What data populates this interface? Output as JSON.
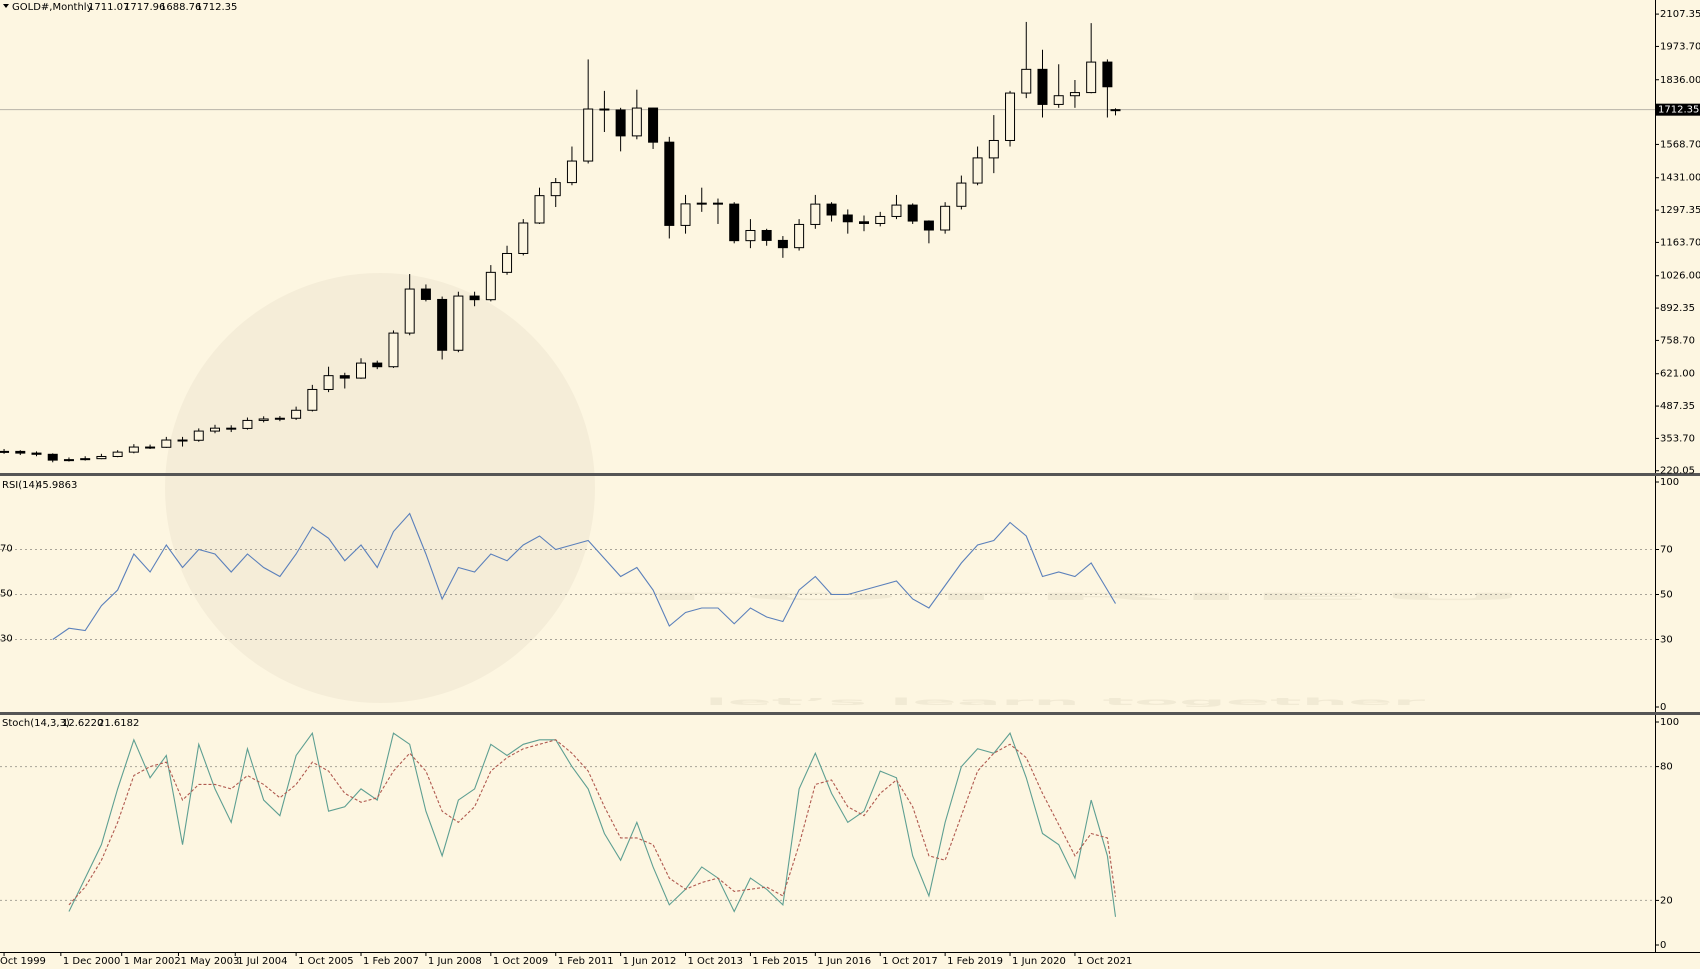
{
  "watermark": {
    "brand": "TOTRIEU",
    "tagline": "let’s learn together"
  },
  "chart_data": [
    {
      "type": "candlestick",
      "title": "GOLD#,Monthly",
      "up_color": "#fdf6e1",
      "down_color": "#000000",
      "xlim": [
        "1999-09-01",
        "2033-09-01"
      ],
      "xticks": [
        {
          "value": "1999-10-01",
          "label": "Oct 1999"
        },
        {
          "value": "2000-12-01",
          "label": "1 Dec 2000"
        },
        {
          "value": "2002-03-01",
          "label": "1 Mar 2002"
        },
        {
          "value": "2003-05-01",
          "label": "1 May 2003"
        },
        {
          "value": "2004-07-01",
          "label": "1 Jul 2004"
        },
        {
          "value": "2005-10-01",
          "label": "1 Oct 2005"
        },
        {
          "value": "2007-02-01",
          "label": "1 Feb 2007"
        },
        {
          "value": "2008-06-01",
          "label": "1 Jun 2008"
        },
        {
          "value": "2009-10-01",
          "label": "1 Oct 2009"
        },
        {
          "value": "2011-02-01",
          "label": "1 Feb 2011"
        },
        {
          "value": "2012-06-01",
          "label": "1 Jun 2012"
        },
        {
          "value": "2013-10-01",
          "label": "1 Oct 2013"
        },
        {
          "value": "2015-02-01",
          "label": "1 Feb 2015"
        },
        {
          "value": "2016-06-01",
          "label": "1 Jun 2016"
        },
        {
          "value": "2017-10-01",
          "label": "1 Oct 2017"
        },
        {
          "value": "2019-02-01",
          "label": "1 Feb 2019"
        },
        {
          "value": "2020-06-01",
          "label": "1 Jun 2020"
        },
        {
          "value": "2021-10-01",
          "label": "1 Oct 2021"
        }
      ],
      "ylim": [
        206.6,
        2165.6
      ],
      "yticks": [
        220.05,
        {
          "value": 353.7,
          "label": "353.70"
        },
        487.35,
        {
          "value": 621,
          "label": "621.00"
        },
        {
          "value": 758.7,
          "label": "758.70"
        },
        892.35,
        {
          "value": 1026,
          "label": "1026.00"
        },
        {
          "value": 1163.7,
          "label": "1163.70"
        },
        1297.35,
        {
          "value": 1431,
          "label": "1431.00"
        },
        {
          "value": 1568.7,
          "label": "1568.70"
        },
        {
          "value": 1836,
          "label": "1836.00"
        },
        {
          "value": 1973.7,
          "label": "1973.70"
        },
        2107.35
      ],
      "x": [
        "1999-10-01",
        "2000-02-01",
        "2000-06-01",
        "2000-10-01",
        "2001-02-01",
        "2001-06-01",
        "2001-10-01",
        "2002-02-01",
        "2002-06-01",
        "2002-10-01",
        "2003-02-01",
        "2003-06-01",
        "2003-10-01",
        "2004-02-01",
        "2004-06-01",
        "2004-10-01",
        "2005-02-01",
        "2005-06-01",
        "2005-10-01",
        "2006-02-01",
        "2006-06-01",
        "2006-10-01",
        "2007-02-01",
        "2007-06-01",
        "2007-10-01",
        "2008-02-01",
        "2008-06-01",
        "2008-10-01",
        "2009-02-01",
        "2009-06-01",
        "2009-10-01",
        "2010-02-01",
        "2010-06-01",
        "2010-10-01",
        "2011-02-01",
        "2011-06-01",
        "2011-10-01",
        "2012-02-01",
        "2012-06-01",
        "2012-10-01",
        "2013-02-01",
        "2013-06-01",
        "2013-10-01",
        "2014-02-01",
        "2014-06-01",
        "2014-10-01",
        "2015-02-01",
        "2015-06-01",
        "2015-10-01",
        "2016-02-01",
        "2016-06-01",
        "2016-10-01",
        "2017-02-01",
        "2017-06-01",
        "2017-10-01",
        "2018-02-01",
        "2018-06-01",
        "2018-10-01",
        "2019-02-01",
        "2019-06-01",
        "2019-10-01",
        "2020-02-01",
        "2020-06-01",
        "2020-10-01",
        "2021-02-01",
        "2021-06-01",
        "2021-10-01",
        "2022-02-01",
        "2022-06-01",
        "2022-08-01"
      ],
      "open": [
        299,
        300,
        293,
        288,
        264,
        266,
        270,
        279,
        297,
        318,
        317,
        347,
        346,
        384,
        396,
        395,
        428,
        434,
        437,
        470,
        556,
        613,
        603,
        665,
        650,
        789,
        971,
        928,
        718,
        942,
        927,
        1040,
        1118,
        1244,
        1357,
        1411,
        1500,
        1715,
        1711,
        1604,
        1719,
        1578,
        1234,
        1323,
        1326,
        1322,
        1171,
        1213,
        1172,
        1142,
        1238,
        1322,
        1277,
        1249,
        1242,
        1271,
        1318,
        1252,
        1215,
        1313,
        1409,
        1513,
        1585,
        1781,
        1879,
        1734,
        1770,
        1783,
        1909,
        1711.07
      ],
      "high": [
        310,
        305,
        300,
        292,
        275,
        280,
        290,
        305,
        330,
        328,
        360,
        360,
        395,
        410,
        408,
        440,
        445,
        446,
        485,
        575,
        650,
        625,
        685,
        675,
        800,
        1033,
        990,
        940,
        960,
        960,
        1070,
        1150,
        1260,
        1390,
        1430,
        1560,
        1920,
        1790,
        1720,
        1795,
        1720,
        1600,
        1360,
        1390,
        1345,
        1330,
        1260,
        1220,
        1190,
        1260,
        1360,
        1330,
        1300,
        1275,
        1290,
        1360,
        1325,
        1255,
        1330,
        1440,
        1560,
        1690,
        1790,
        2075,
        1960,
        1900,
        1835,
        2070,
        1920,
        1717.96
      ],
      "low": [
        290,
        285,
        280,
        255,
        258,
        262,
        268,
        276,
        292,
        310,
        315,
        320,
        340,
        375,
        380,
        390,
        420,
        425,
        430,
        465,
        545,
        560,
        600,
        640,
        645,
        780,
        920,
        680,
        710,
        900,
        920,
        1030,
        1110,
        1240,
        1310,
        1400,
        1490,
        1620,
        1540,
        1590,
        1550,
        1180,
        1200,
        1290,
        1240,
        1160,
        1140,
        1150,
        1100,
        1130,
        1220,
        1250,
        1200,
        1210,
        1230,
        1260,
        1240,
        1160,
        1200,
        1300,
        1400,
        1450,
        1560,
        1760,
        1680,
        1720,
        1720,
        1780,
        1680,
        1688.76
      ],
      "close": [
        300,
        293,
        288,
        264,
        266,
        270,
        279,
        297,
        318,
        317,
        347,
        346,
        384,
        396,
        395,
        428,
        434,
        437,
        470,
        556,
        613,
        603,
        665,
        650,
        789,
        971,
        928,
        718,
        942,
        927,
        1040,
        1118,
        1244,
        1357,
        1411,
        1500,
        1715,
        1711,
        1604,
        1719,
        1578,
        1234,
        1323,
        1326,
        1322,
        1171,
        1213,
        1172,
        1142,
        1238,
        1322,
        1277,
        1249,
        1242,
        1271,
        1318,
        1252,
        1215,
        1313,
        1409,
        1513,
        1585,
        1781,
        1879,
        1734,
        1770,
        1783,
        1909,
        1807,
        1712.35
      ]
    },
    {
      "type": "line",
      "title": "RSI(14)",
      "ylim": [
        0,
        100
      ],
      "yticks": [
        100,
        70,
        50,
        30,
        0
      ],
      "levels": [
        70,
        50,
        30
      ],
      "series": [
        {
          "color": "#5b80bb",
          "values": [
            null,
            null,
            null,
            30,
            35,
            34,
            45,
            52,
            68,
            60,
            72,
            62,
            70,
            68,
            60,
            68,
            62,
            58,
            68,
            80,
            75,
            65,
            72,
            62,
            78,
            86,
            68,
            48,
            62,
            60,
            68,
            65,
            72,
            76,
            70,
            72,
            74,
            66,
            58,
            62,
            52,
            36,
            42,
            44,
            44,
            37,
            44,
            40,
            38,
            52,
            58,
            50,
            50,
            52,
            54,
            56,
            48,
            44,
            54,
            64,
            72,
            74,
            82,
            76,
            58,
            60,
            58,
            64,
            52,
            45.9863
          ]
        }
      ]
    },
    {
      "type": "line",
      "title": "Stoch(14,3,3)",
      "ylim": [
        0,
        100
      ],
      "yticks": [
        100,
        80,
        20,
        0
      ],
      "levels": [
        80,
        20
      ],
      "series": [
        {
          "color": "#5e9f92",
          "header_label": "12.6220",
          "values": [
            null,
            null,
            null,
            null,
            15,
            30,
            45,
            70,
            92,
            75,
            85,
            45,
            90,
            70,
            55,
            88,
            65,
            58,
            85,
            95,
            60,
            62,
            70,
            65,
            95,
            90,
            60,
            40,
            65,
            70,
            90,
            85,
            90,
            92,
            92,
            80,
            70,
            50,
            38,
            55,
            35,
            18,
            25,
            35,
            30,
            15,
            30,
            25,
            18,
            70,
            86,
            68,
            55,
            60,
            78,
            75,
            40,
            22,
            55,
            80,
            88,
            86,
            95,
            75,
            50,
            45,
            30,
            65,
            40,
            12.622
          ]
        },
        {
          "color": "#b05a50",
          "dashed": true,
          "values": [
            null,
            null,
            null,
            null,
            18,
            26,
            38,
            55,
            76,
            80,
            82,
            65,
            72,
            72,
            70,
            76,
            72,
            66,
            72,
            82,
            78,
            68,
            64,
            66,
            78,
            86,
            78,
            60,
            55,
            62,
            78,
            84,
            88,
            90,
            92,
            86,
            78,
            62,
            48,
            48,
            45,
            30,
            25,
            28,
            30,
            24,
            25,
            26,
            22,
            45,
            72,
            74,
            62,
            58,
            68,
            74,
            62,
            40,
            38,
            58,
            78,
            86,
            90,
            84,
            68,
            54,
            40,
            50,
            48,
            21.6182
          ]
        }
      ]
    }
  ]
}
